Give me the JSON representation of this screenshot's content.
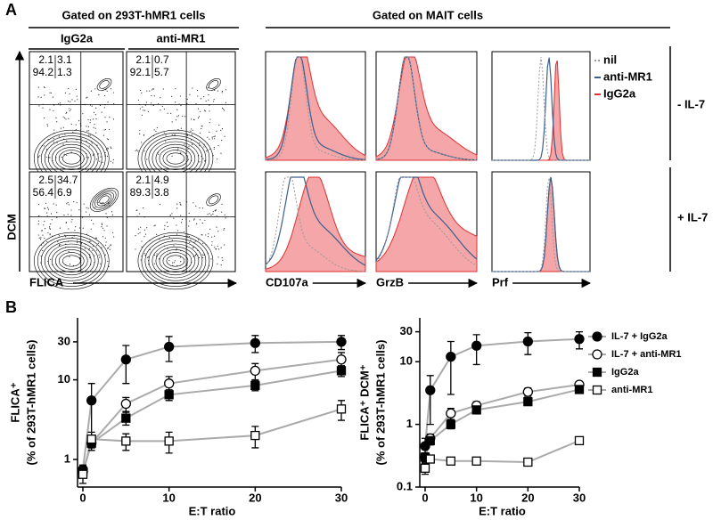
{
  "panel_a": {
    "label": "A",
    "left_header": "Gated on 293T-hMR1 cells",
    "columns": [
      "IgG2a",
      "anti-MR1"
    ],
    "y_axis": "DCM",
    "x_axis": "FLICA",
    "quadrants": [
      [
        [
          2.1,
          3.1,
          94.2,
          1.3
        ],
        [
          2.1,
          0.7,
          92.1,
          5.7
        ]
      ],
      [
        [
          2.5,
          34.7,
          56.4,
          6.9
        ],
        [
          2.1,
          4.9,
          89.3,
          3.8
        ]
      ]
    ],
    "right_header": "Gated on MAIT cells",
    "histogram_axes": [
      "CD107a",
      "GrzB",
      "Prf"
    ],
    "legend": [
      {
        "name": "nil",
        "color": "#999999"
      },
      {
        "name": "anti-MR1",
        "color": "#3a5f8f"
      },
      {
        "name": "IgG2a",
        "color": "#e03030"
      }
    ],
    "rows": [
      "- IL-7",
      "+ IL-7"
    ]
  },
  "panel_b": {
    "label": "B"
  },
  "chart_data": [
    {
      "type": "line",
      "y_label": "FLICA⁺",
      "y_label_2": "(% of 293T-hMR1 cells)",
      "x_label": "E:T ratio",
      "log_y": true,
      "x": [
        0,
        1,
        5,
        10,
        20,
        30
      ],
      "xlim": [
        0,
        30
      ],
      "xticks": [
        0,
        10,
        20,
        30
      ],
      "ylim": [
        0.45,
        60
      ],
      "yticks": [
        1,
        10,
        30
      ],
      "series": [
        {
          "name": "IL-7 + IgG2a",
          "color": "#000000",
          "marker": "circle",
          "filled": true,
          "values": [
            0.75,
            5.5,
            18,
            26,
            29,
            30
          ],
          "errors": [
            0.1,
            3.5,
            9,
            9,
            7,
            6
          ]
        },
        {
          "name": "IL-7 + anti-MR1",
          "color": "#000000",
          "marker": "circle",
          "filled": false,
          "values": [
            0.7,
            1.6,
            5,
            9,
            13,
            18
          ],
          "errors": [
            0.1,
            0.3,
            1,
            2,
            3,
            4
          ]
        },
        {
          "name": "IgG2a",
          "color": "#000000",
          "marker": "square",
          "filled": true,
          "values": [
            0.7,
            1.6,
            3.3,
            6.5,
            8.5,
            13
          ],
          "errors": [
            0.05,
            0.2,
            0.6,
            1,
            1.2,
            2
          ]
        },
        {
          "name": "anti-MR1",
          "color": "#000000",
          "marker": "square",
          "filled": false,
          "values": [
            0.65,
            1.8,
            1.7,
            1.7,
            2.0,
            4.3
          ],
          "errors": [
            0.15,
            0.4,
            0.4,
            0.5,
            0.6,
            1.2
          ]
        }
      ]
    },
    {
      "type": "line",
      "y_label": "FLICA⁺ DCM⁺",
      "y_label_2": "(% of 293T-hMR1 cells)",
      "x_label": "E:T ratio",
      "log_y": true,
      "legend": "right",
      "x": [
        0,
        1,
        5,
        10,
        20,
        30
      ],
      "xlim": [
        0,
        30
      ],
      "xticks": [
        0,
        10,
        20,
        30
      ],
      "ylim": [
        0.1,
        50
      ],
      "yticks": [
        0.1,
        1,
        10,
        30
      ],
      "series": [
        {
          "name": "IL-7 + IgG2a",
          "color": "#000000",
          "marker": "circle",
          "filled": true,
          "values": [
            0.45,
            3.5,
            12,
            18,
            21,
            23
          ],
          "errors": [
            0.15,
            2.5,
            9,
            9,
            8,
            7
          ]
        },
        {
          "name": "IL-7 + anti-MR1",
          "color": "#000000",
          "marker": "circle",
          "filled": false,
          "values": [
            0.3,
            0.6,
            1.5,
            2,
            3.3,
            4.3
          ],
          "errors": [
            0.05,
            0.1,
            0.3,
            0.3,
            0.5,
            0.5
          ]
        },
        {
          "name": "IgG2a",
          "color": "#000000",
          "marker": "square",
          "filled": true,
          "values": [
            0.3,
            0.55,
            1.0,
            1.7,
            2.3,
            3.6
          ],
          "errors": [
            0.05,
            0.08,
            0.15,
            0.2,
            0.3,
            0.4
          ]
        },
        {
          "name": "anti-MR1",
          "color": "#000000",
          "marker": "square",
          "filled": false,
          "values": [
            0.2,
            0.28,
            0.26,
            0.26,
            0.25,
            0.55
          ],
          "errors": [
            0.04,
            0.03,
            0.02,
            0.02,
            0.02,
            0.06
          ]
        }
      ]
    }
  ]
}
